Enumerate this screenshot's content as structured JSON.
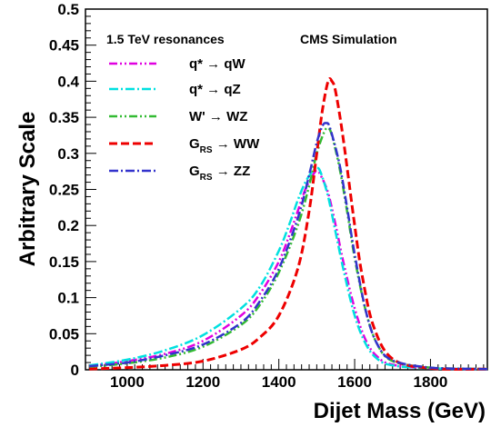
{
  "chart_data": {
    "type": "line",
    "title": "",
    "xlabel": "Dijet Mass (GeV)",
    "ylabel": "Arbitrary Scale",
    "xlim": [
      890,
      1950
    ],
    "ylim": [
      0,
      0.5
    ],
    "x_ticks": [
      1000,
      1200,
      1400,
      1600,
      1800
    ],
    "x_tick_labels": [
      "1000",
      "1200",
      "1400",
      "1600",
      "1800"
    ],
    "y_ticks": [
      0,
      0.05,
      0.1,
      0.15,
      0.2,
      0.25,
      0.3,
      0.35,
      0.4,
      0.45,
      0.5
    ],
    "y_tick_labels": [
      "0",
      "0.05",
      "0.1",
      "0.15",
      "0.2",
      "0.25",
      "0.3",
      "0.35",
      "0.4",
      "0.45",
      "0.5"
    ],
    "grid": false,
    "legend_position": "top-left",
    "legend_header": "1.5 TeV resonances",
    "annotation": "CMS Simulation",
    "series": [
      {
        "name": "q* → qW",
        "label_main": "q*",
        "label_sub": "",
        "label_rest": "→ qW",
        "color": "#e000e0",
        "dash": "9,3,2,3,2,3",
        "points": [
          [
            900,
            0.005
          ],
          [
            1000,
            0.012
          ],
          [
            1100,
            0.022
          ],
          [
            1200,
            0.04
          ],
          [
            1300,
            0.075
          ],
          [
            1350,
            0.105
          ],
          [
            1400,
            0.15
          ],
          [
            1430,
            0.19
          ],
          [
            1450,
            0.22
          ],
          [
            1470,
            0.25
          ],
          [
            1490,
            0.27
          ],
          [
            1500,
            0.276
          ],
          [
            1510,
            0.27
          ],
          [
            1530,
            0.245
          ],
          [
            1550,
            0.2
          ],
          [
            1570,
            0.15
          ],
          [
            1600,
            0.085
          ],
          [
            1630,
            0.04
          ],
          [
            1660,
            0.018
          ],
          [
            1700,
            0.007
          ],
          [
            1800,
            0.002
          ],
          [
            1950,
            0.001
          ]
        ]
      },
      {
        "name": "q* → qZ",
        "label_main": "q*",
        "label_sub": "",
        "label_rest": "→ qZ",
        "color": "#00e0e0",
        "dash": "10,3,2,3",
        "points": [
          [
            900,
            0.006
          ],
          [
            1000,
            0.014
          ],
          [
            1100,
            0.027
          ],
          [
            1200,
            0.048
          ],
          [
            1300,
            0.085
          ],
          [
            1350,
            0.115
          ],
          [
            1400,
            0.165
          ],
          [
            1430,
            0.205
          ],
          [
            1450,
            0.235
          ],
          [
            1470,
            0.26
          ],
          [
            1490,
            0.276
          ],
          [
            1500,
            0.28
          ],
          [
            1510,
            0.274
          ],
          [
            1530,
            0.24
          ],
          [
            1550,
            0.19
          ],
          [
            1570,
            0.14
          ],
          [
            1600,
            0.075
          ],
          [
            1630,
            0.035
          ],
          [
            1660,
            0.015
          ],
          [
            1700,
            0.006
          ],
          [
            1800,
            0.002
          ],
          [
            1950,
            0.001
          ]
        ]
      },
      {
        "name": "W' → WZ",
        "label_main": "W'",
        "label_sub": "",
        "label_rest": "→ WZ",
        "color": "#33bb33",
        "dash": "9,3,2,3,2,3",
        "points": [
          [
            900,
            0.004
          ],
          [
            1000,
            0.009
          ],
          [
            1100,
            0.017
          ],
          [
            1200,
            0.032
          ],
          [
            1300,
            0.062
          ],
          [
            1350,
            0.09
          ],
          [
            1400,
            0.135
          ],
          [
            1450,
            0.2
          ],
          [
            1480,
            0.255
          ],
          [
            1500,
            0.3
          ],
          [
            1520,
            0.33
          ],
          [
            1530,
            0.335
          ],
          [
            1540,
            0.325
          ],
          [
            1560,
            0.28
          ],
          [
            1580,
            0.22
          ],
          [
            1600,
            0.155
          ],
          [
            1630,
            0.08
          ],
          [
            1660,
            0.035
          ],
          [
            1700,
            0.012
          ],
          [
            1800,
            0.003
          ],
          [
            1950,
            0.001
          ]
        ]
      },
      {
        "name": "GRS → WW",
        "label_main": "G",
        "label_sub": "RS",
        "label_rest": "→ WW",
        "color": "#ee0000",
        "dash": "9,4",
        "points": [
          [
            900,
            0.001
          ],
          [
            1000,
            0.003
          ],
          [
            1100,
            0.006
          ],
          [
            1200,
            0.012
          ],
          [
            1300,
            0.028
          ],
          [
            1350,
            0.045
          ],
          [
            1400,
            0.075
          ],
          [
            1450,
            0.14
          ],
          [
            1480,
            0.22
          ],
          [
            1500,
            0.3
          ],
          [
            1515,
            0.36
          ],
          [
            1530,
            0.4
          ],
          [
            1540,
            0.4
          ],
          [
            1550,
            0.385
          ],
          [
            1570,
            0.32
          ],
          [
            1600,
            0.2
          ],
          [
            1620,
            0.13
          ],
          [
            1650,
            0.06
          ],
          [
            1700,
            0.015
          ],
          [
            1800,
            0.002
          ],
          [
            1950,
            0.001
          ]
        ]
      },
      {
        "name": "GRS → ZZ",
        "label_main": "G",
        "label_sub": "RS",
        "label_rest": "→ ZZ",
        "color": "#3333cc",
        "dash": "10,3,2,3",
        "points": [
          [
            900,
            0.005
          ],
          [
            1000,
            0.01
          ],
          [
            1100,
            0.02
          ],
          [
            1200,
            0.035
          ],
          [
            1300,
            0.065
          ],
          [
            1350,
            0.095
          ],
          [
            1400,
            0.14
          ],
          [
            1450,
            0.21
          ],
          [
            1480,
            0.27
          ],
          [
            1500,
            0.315
          ],
          [
            1515,
            0.338
          ],
          [
            1525,
            0.342
          ],
          [
            1535,
            0.335
          ],
          [
            1560,
            0.285
          ],
          [
            1580,
            0.225
          ],
          [
            1600,
            0.16
          ],
          [
            1630,
            0.08
          ],
          [
            1660,
            0.035
          ],
          [
            1700,
            0.013
          ],
          [
            1800,
            0.003
          ],
          [
            1950,
            0.001
          ]
        ]
      }
    ]
  }
}
